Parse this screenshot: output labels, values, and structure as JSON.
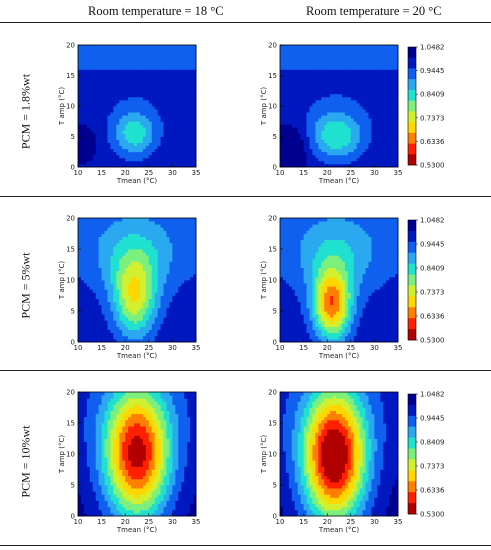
{
  "headers": {
    "col1": "Room temperature = 18 °C",
    "col2": "Room temperature = 20 °C"
  },
  "rows": [
    {
      "label": "PCM = 1.8%wt"
    },
    {
      "label": "PCM = 5%wt"
    },
    {
      "label": "PCM = 10%wt"
    }
  ],
  "colors": {
    "scale": [
      "#b00000",
      "#ff2000",
      "#ff7f00",
      "#ffd700",
      "#d0f030",
      "#7cf07c",
      "#20e0d0",
      "#2aa8f0",
      "#1060f0",
      "#0018c0",
      "#000090"
    ]
  },
  "chart_data": [
    {
      "type": "heatmap",
      "title": "PCM = 1.8%wt, Room temperature = 18 °C",
      "xlabel": "Tmean (°C)",
      "ylabel": "T amp (°C)",
      "xlim": [
        10,
        35
      ],
      "ylim": [
        0,
        20
      ],
      "x_ticks": [
        10,
        15,
        20,
        25,
        30,
        35
      ],
      "y_ticks": [
        0,
        5,
        10,
        15,
        20
      ],
      "blobs": [
        {
          "cx": 22,
          "cy": 5.5,
          "sx": 3.2,
          "sy": 2.6,
          "depth": 0.16
        },
        {
          "cx": 11,
          "cy": 4,
          "sx": 1.5,
          "sy": 1.6,
          "depth": -0.12
        }
      ],
      "base": 0.97
    },
    {
      "type": "heatmap",
      "title": "PCM = 1.8%wt, Room temperature = 20 °C",
      "xlabel": "Tmean (°C)",
      "ylabel": "T amp (°C)",
      "xlim": [
        10,
        35
      ],
      "ylim": [
        0,
        20
      ],
      "x_ticks": [
        10,
        15,
        20,
        25,
        30,
        35
      ],
      "y_ticks": [
        0,
        5,
        10,
        15,
        20
      ],
      "colorbar": {
        "levels": [
          1.0482,
          0.9445,
          0.8409,
          0.7373,
          0.6336,
          0.53
        ]
      },
      "blobs": [
        {
          "cx": 22,
          "cy": 5.2,
          "sx": 4.0,
          "sy": 2.8,
          "depth": 0.17
        },
        {
          "cx": 12,
          "cy": 3,
          "sx": 2.5,
          "sy": 2.5,
          "depth": -0.1
        }
      ],
      "base": 0.97
    },
    {
      "type": "heatmap",
      "title": "PCM = 5%wt, Room temperature = 18 °C",
      "xlabel": "Tmean (°C)",
      "ylabel": "T amp (°C)",
      "xlim": [
        10,
        35
      ],
      "ylim": [
        0,
        20
      ],
      "x_ticks": [
        10,
        15,
        20,
        25,
        30,
        35
      ],
      "y_ticks": [
        0,
        5,
        10,
        15,
        20
      ],
      "blobs": [
        {
          "cx": 22,
          "cy": 7,
          "sx": 3.2,
          "sy": 4.5,
          "depth": 0.24
        },
        {
          "cx": 22,
          "cy": 14,
          "sx": 6.5,
          "sy": 4.5,
          "depth": 0.1
        }
      ],
      "base": 0.97
    },
    {
      "type": "heatmap",
      "title": "PCM = 5%wt, Room temperature = 20 °C",
      "xlabel": "Tmean (°C)",
      "ylabel": "T amp (°C)",
      "xlim": [
        10,
        35
      ],
      "ylim": [
        0,
        20
      ],
      "x_ticks": [
        10,
        15,
        20,
        25,
        30,
        35
      ],
      "y_ticks": [
        0,
        5,
        10,
        15,
        20
      ],
      "colorbar": {
        "levels": [
          1.0482,
          0.9445,
          0.8409,
          0.7373,
          0.6336,
          0.53
        ]
      },
      "blobs": [
        {
          "cx": 21,
          "cy": 6,
          "sx": 2.8,
          "sy": 4.0,
          "depth": 0.34
        },
        {
          "cx": 22,
          "cy": 14,
          "sx": 6.5,
          "sy": 4.5,
          "depth": 0.1
        }
      ],
      "base": 0.97
    },
    {
      "type": "heatmap",
      "title": "PCM = 10%wt, Room temperature = 18 °C",
      "xlabel": "Tmean (°C)",
      "ylabel": "T amp (°C)",
      "xlim": [
        10,
        35
      ],
      "ylim": [
        0,
        20
      ],
      "x_ticks": [
        10,
        15,
        20,
        25,
        30,
        35
      ],
      "y_ticks": [
        0,
        5,
        10,
        15,
        20
      ],
      "blobs": [
        {
          "cx": 22.5,
          "cy": 10,
          "sx": 5.0,
          "sy": 7.5,
          "depth": 0.45
        }
      ],
      "base": 1.0
    },
    {
      "type": "heatmap",
      "title": "PCM = 10%wt, Room temperature = 20 °C",
      "xlabel": "Tmean (°C)",
      "ylabel": "T amp (°C)",
      "xlim": [
        10,
        35
      ],
      "ylim": [
        0,
        20
      ],
      "x_ticks": [
        10,
        15,
        20,
        25,
        30,
        35
      ],
      "y_ticks": [
        0,
        5,
        10,
        15,
        20
      ],
      "colorbar": {
        "levels": [
          1.0482,
          0.9445,
          0.8409,
          0.7373,
          0.6336,
          0.53
        ]
      },
      "blobs": [
        {
          "cx": 21.5,
          "cy": 9.5,
          "sx": 4.8,
          "sy": 7.5,
          "depth": 0.5
        }
      ],
      "base": 1.0
    }
  ]
}
